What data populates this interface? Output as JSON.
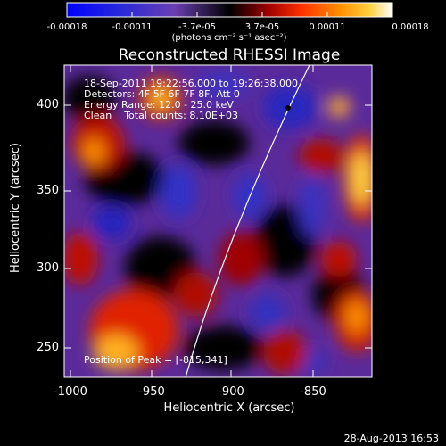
{
  "colorbar": {
    "tick_labels": [
      "-0.00018",
      "-0.00011",
      "-3.7e-05",
      "3.7e-05",
      "0.00011",
      "0.00018"
    ],
    "unit": "(photons cm⁻² s⁻¹ asec⁻²)",
    "stops": [
      "#0000ff",
      "#3030d8",
      "#6a3fb0",
      "#000000",
      "#a00000",
      "#ff3000",
      "#ff9000",
      "#ffd040",
      "#ffffff"
    ]
  },
  "image": {
    "title": "Reconstructed RHESSI Image",
    "info_lines": [
      "18-Sep-2011 19:22:56.000 to 19:26:38.000",
      "Detectors: 4F 5F 6F 7F 8F, Att 0",
      "Energy Range: 12.0 - 25.0 keV",
      "Clean    Total counts: 8.10E+03"
    ],
    "peak_text": "Position of Peak = [-815,341]",
    "x_axis": {
      "label": "Heliocentric X (arcsec)",
      "ticks": [
        "-1000",
        "-950",
        "-900",
        "-850"
      ]
    },
    "y_axis": {
      "label": "Heliocentric Y (arcsec)",
      "ticks": [
        "400",
        "350",
        "300",
        "250"
      ]
    },
    "timestamp": "28-Aug-2013 16:53"
  }
}
